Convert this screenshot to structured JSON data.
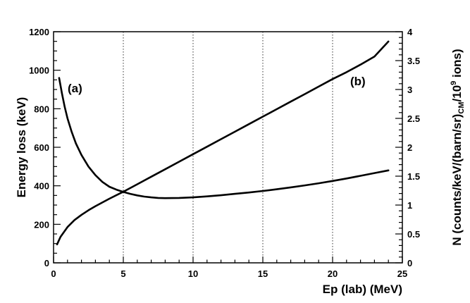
{
  "chart_data": {
    "type": "line",
    "xlabel": "Ep (lab) (MeV)",
    "ylabel_left": "Energy loss (keV)",
    "ylabel_right_parts": [
      "N (counts/keV/(barn/sr)",
      "CM",
      "/10",
      "9",
      " ions)"
    ],
    "xlim": [
      0,
      25
    ],
    "ylim_left": [
      0,
      1200
    ],
    "ylim_right": [
      0,
      4
    ],
    "x_ticks": [
      0,
      5,
      10,
      15,
      20,
      25
    ],
    "y_left_ticks": [
      0,
      200,
      400,
      600,
      800,
      1000,
      1200
    ],
    "y_right_ticks": [
      0,
      0.5,
      1,
      1.5,
      2,
      2.5,
      3,
      3.5,
      4
    ],
    "grid_x": [
      5,
      10,
      15,
      20
    ],
    "annotations": [
      "(a)",
      "(b)"
    ],
    "series": [
      {
        "axis": "left",
        "x": [
          0.4,
          0.6,
          0.8,
          1.0,
          1.3,
          1.6,
          2.0,
          2.5,
          3.0,
          3.5,
          4.0,
          4.5,
          5.0,
          5.5,
          6.0,
          6.5,
          7.0,
          7.5,
          8.0,
          9.0,
          10.0,
          11.0,
          12.0,
          13.0,
          14.0,
          15.0,
          16.0,
          17.0,
          18.0,
          19.0,
          20.0,
          21.0,
          22.0,
          23.0,
          24.0
        ],
        "y": [
          960,
          880,
          810,
          750,
          680,
          620,
          560,
          500,
          455,
          420,
          395,
          380,
          368,
          358,
          350,
          344,
          340,
          337,
          336,
          337,
          340,
          345,
          351,
          358,
          365,
          373,
          382,
          392,
          402,
          413,
          425,
          438,
          452,
          466,
          480
        ]
      },
      {
        "axis": "right",
        "x": [
          0.25,
          0.5,
          1.0,
          1.5,
          2.0,
          2.5,
          3.0,
          4.0,
          5.0,
          6.0,
          7.0,
          8.0,
          9.0,
          10.0,
          11.0,
          12.0,
          13.0,
          14.0,
          15.0,
          16.0,
          17.0,
          18.0,
          19.0,
          20.0,
          21.0,
          22.0,
          23.0,
          24.0
        ],
        "y": [
          0.32,
          0.45,
          0.62,
          0.74,
          0.83,
          0.91,
          0.98,
          1.11,
          1.23,
          1.36,
          1.49,
          1.62,
          1.75,
          1.88,
          2.01,
          2.14,
          2.27,
          2.4,
          2.53,
          2.66,
          2.79,
          2.92,
          3.05,
          3.18,
          3.3,
          3.43,
          3.57,
          3.83
        ]
      }
    ]
  }
}
